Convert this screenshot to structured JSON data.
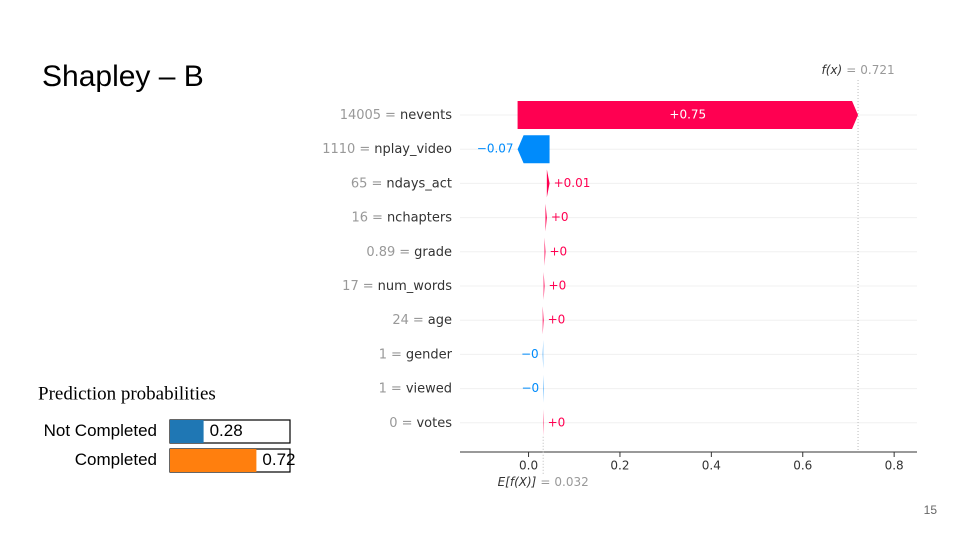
{
  "slide": {
    "title": "Shapley – B",
    "page_number": "15"
  },
  "chart_data": [
    {
      "type": "waterfall",
      "features": [
        "nevents",
        "nplay_video",
        "ndays_act",
        "nchapters",
        "grade",
        "num_words",
        "age",
        "gender",
        "viewed",
        "votes"
      ],
      "feature_values": [
        14005,
        1110,
        65,
        16,
        0.89,
        17,
        24,
        1,
        1,
        0
      ],
      "separator": "=",
      "values": [
        0.745,
        -0.07,
        0.006,
        0.003,
        0.002,
        0.002,
        0.002,
        -0.001,
        -0.001,
        0.001
      ],
      "value_labels": [
        "+0.75",
        "−0.07",
        "+0.01",
        "+0",
        "+0",
        "+0",
        "+0",
        "−0",
        "−0",
        "+0"
      ],
      "positive_color": "#ff0051",
      "negative_color": "#008bfb",
      "fx_label": "f(x)",
      "fx": 0.721,
      "base_label": "E[f(X)]",
      "base_value": 0.032,
      "xlim": [
        -0.15,
        0.85
      ],
      "xticks": [
        {
          "value": 0,
          "label": "0.0"
        },
        0.2,
        0.4,
        0.6,
        0.8
      ]
    },
    {
      "type": "bar",
      "orientation": "horizontal",
      "title": "Prediction probabilities",
      "categories": [
        "Not Completed",
        "Completed"
      ],
      "values": [
        0.28,
        0.72
      ],
      "colors": [
        "#1f77b4",
        "#ff7f0e"
      ],
      "xlim": [
        0,
        1
      ]
    }
  ]
}
